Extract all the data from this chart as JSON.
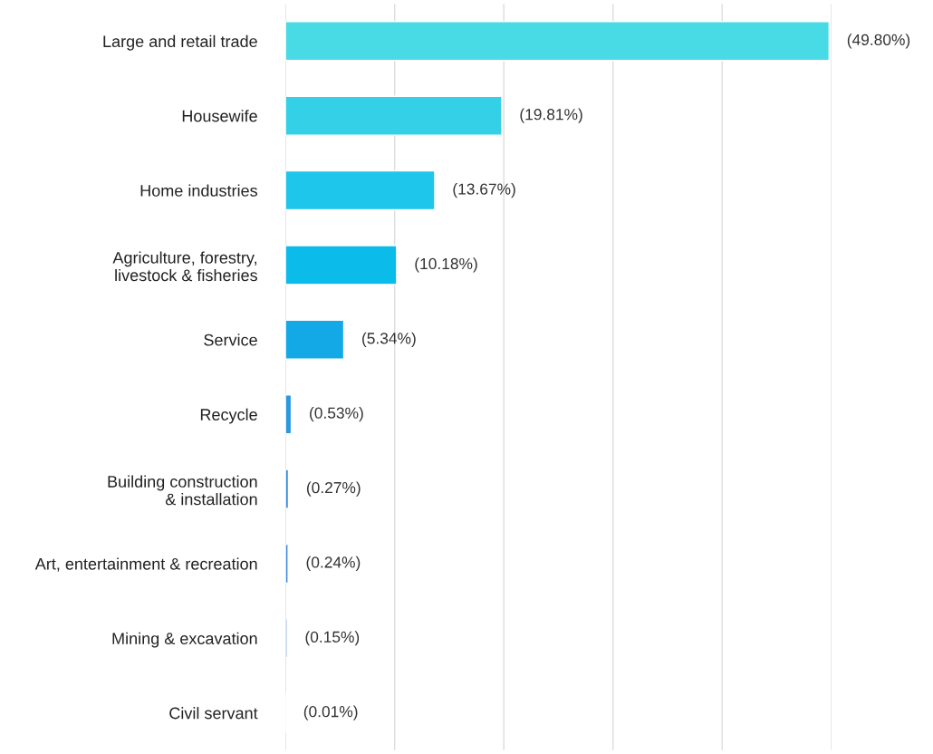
{
  "chart_data": {
    "type": "bar",
    "orientation": "horizontal",
    "categories": [
      "Large and retail trade",
      "Housewife",
      "Home industries",
      "Agriculture, forestry,\nlivestock & fisheries",
      "Service",
      "Recycle",
      "Building construction\n& installation",
      "Art, entertainment & recreation",
      "Mining & excavation",
      "Civil servant"
    ],
    "values": [
      49.8,
      19.81,
      13.67,
      10.18,
      5.34,
      0.53,
      0.27,
      0.24,
      0.15,
      0.01
    ],
    "colors": [
      "#48dbe6",
      "#33d0e8",
      "#1dc6ea",
      "#0bbbe9",
      "#13a8e6",
      "#2a98e0",
      "#3790dc",
      "#3e8bdb",
      "#4a7fd6",
      "#5570cc"
    ],
    "value_labels": [
      "(49.80%)",
      "(19.81%)",
      "(13.67%)",
      "(10.18%)",
      "(5.34%)",
      "(0.53%)",
      "(0.27%)",
      "(0.24%)",
      "(0.15%)",
      "(0.01%)"
    ],
    "xlim": [
      0,
      50
    ],
    "xticks": [
      {
        "value": 0,
        "label": null
      },
      {
        "value": 10,
        "label": null
      },
      {
        "value": 20,
        "label": null
      },
      {
        "value": 30,
        "label": null
      },
      {
        "value": 40,
        "label": null
      },
      {
        "value": 50,
        "label": null
      }
    ],
    "tick_labels": "y",
    "grid": "x"
  }
}
